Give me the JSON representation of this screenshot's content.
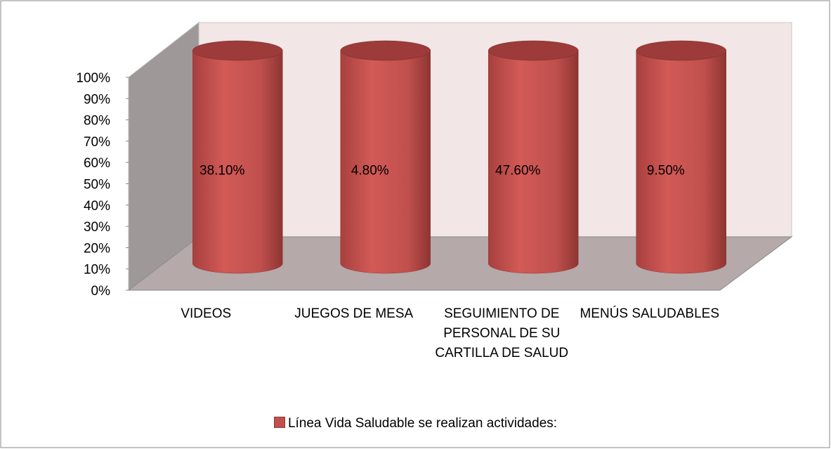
{
  "chart_data": {
    "type": "bar",
    "stacking": "percent",
    "categories": [
      "VIDEOS",
      "JUEGOS DE MESA",
      "SEGUIMIENTO DE PERSONAL DE SU CARTILLA DE SALUD",
      "MENÚS SALUDABLES"
    ],
    "series": [
      {
        "name": "Línea Vida Saludable se realizan actividades:",
        "color": "#c0504d",
        "values": [
          38.1,
          4.8,
          47.6,
          9.5
        ],
        "value_labels": [
          "38.10%",
          "4.80%",
          "47.60%",
          "9.50%"
        ]
      }
    ],
    "ylim": [
      0,
      100
    ],
    "yticks": [
      {
        "value": 0,
        "label": "0%"
      },
      {
        "value": 10,
        "label": "10%"
      },
      {
        "value": 20,
        "label": "20%"
      },
      {
        "value": 30,
        "label": "30%"
      },
      {
        "value": 40,
        "label": "40%"
      },
      {
        "value": 50,
        "label": "50%"
      },
      {
        "value": 60,
        "label": "60%"
      },
      {
        "value": 70,
        "label": "70%"
      },
      {
        "value": 80,
        "label": "80%"
      },
      {
        "value": 90,
        "label": "90%"
      },
      {
        "value": 100,
        "label": "100%"
      }
    ],
    "legend": "bottom",
    "grid": false
  }
}
